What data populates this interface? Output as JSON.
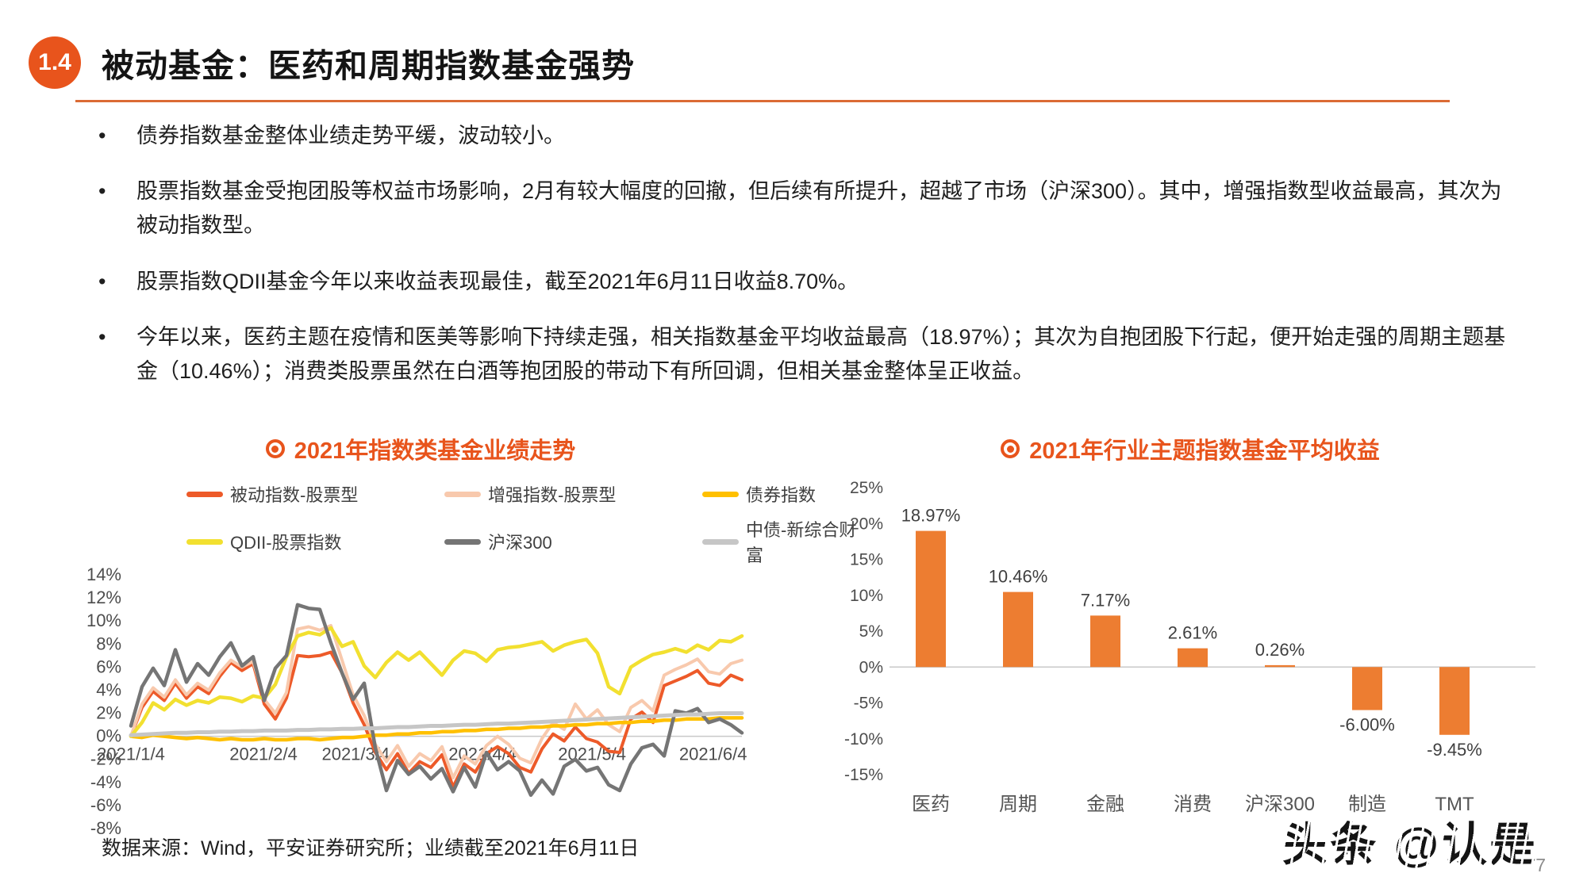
{
  "header": {
    "badge": "1.4",
    "title": "被动基金：医药和周期指数基金强势"
  },
  "bullets": [
    "债券指数基金整体业绩走势平缓，波动较小。",
    "股票指数基金受抱团股等权益市场影响，2月有较大幅度的回撤，但后续有所提升，超越了市场（沪深300）。其中，增强指数型收益最高，其次为被动指数型。",
    "股票指数QDII基金今年以来收益表现最佳，截至2021年6月11日收益8.70%。",
    "今年以来，医药主题在疫情和医美等影响下持续走强，相关指数基金平均收益最高（18.97%）；其次为自抱团股下行起，便开始走强的周期主题基金（10.46%）；消费类股票虽然在白酒等抱团股的带动下有所回调，但相关基金整体呈正收益。"
  ],
  "footer": {
    "source_note": "数据来源：Wind，平安证券研究所；业绩截至2021年6月11日",
    "page_number": "7"
  },
  "watermark": {
    "text": "头条 @认是"
  },
  "colors": {
    "accent": "#E8541C",
    "bar": "#ED7D31",
    "axis": "#C9C9C9",
    "tick_text": "#4d4d4d"
  },
  "chart_data": [
    {
      "type": "line",
      "title": "2021年指数类基金业绩走势",
      "x_tick_labels": [
        "2021/1/4",
        "2021/2/4",
        "2021/3/4",
        "2021/4/4",
        "2021/5/4",
        "2021/6/4"
      ],
      "x_tick_days": [
        0,
        23,
        39,
        61,
        80,
        101
      ],
      "x_total_days": 106,
      "ylim": [
        -8,
        14
      ],
      "y_tick_step": 2,
      "y_tick_labels": [
        "14%",
        "12%",
        "10%",
        "8%",
        "6%",
        "4%",
        "2%",
        "0%",
        "-2%",
        "-4%",
        "-6%",
        "-8%"
      ],
      "grid": false,
      "legend_position": "top",
      "series": [
        {
          "key": "passive",
          "name": "被动指数-股票型",
          "color": "#ED5A29",
          "width": 4,
          "values": [
            0.0,
            2.5,
            3.9,
            3.1,
            4.6,
            3.3,
            4.3,
            3.7,
            5.2,
            6.4,
            5.7,
            6.3,
            2.8,
            1.5,
            3.3,
            7.0,
            6.9,
            7.0,
            7.3,
            5.5,
            2.9,
            1.0,
            -1.4,
            -2.9,
            -1.5,
            -3.2,
            -2.2,
            -2.7,
            -1.6,
            -4.4,
            -2.4,
            -3.1,
            -1.5,
            -0.9,
            -1.5,
            -2.7,
            -3.1,
            -1.1,
            0.2,
            -0.4,
            0.8,
            -0.2,
            -0.5,
            -1.3,
            -1.4,
            1.5,
            2.1,
            1.2,
            4.4,
            4.8,
            5.2,
            5.7,
            4.6,
            4.4,
            5.3,
            4.9
          ]
        },
        {
          "key": "enhanced",
          "name": "增强指数-股票型",
          "color": "#F8C9AD",
          "width": 4,
          "values": [
            0.0,
            2.8,
            4.2,
            3.4,
            4.9,
            3.6,
            4.6,
            4.0,
            5.5,
            6.6,
            6.0,
            6.5,
            3.2,
            2.0,
            3.8,
            9.3,
            9.5,
            9.2,
            9.6,
            6.6,
            3.6,
            1.8,
            -0.7,
            -2.2,
            -0.8,
            -2.6,
            -1.5,
            -2.1,
            -0.9,
            -3.6,
            -1.7,
            -2.4,
            -0.8,
            0.0,
            -0.7,
            -1.9,
            -2.3,
            -0.2,
            1.2,
            0.6,
            2.8,
            1.5,
            2.3,
            1.0,
            0.4,
            2.5,
            3.1,
            2.2,
            5.3,
            5.8,
            6.2,
            6.7,
            5.6,
            5.4,
            6.3,
            6.6
          ]
        },
        {
          "key": "bond",
          "name": "债券指数",
          "color": "#FFC000",
          "width": 4.5,
          "values": [
            0.0,
            -0.1,
            0.1,
            0.0,
            -0.1,
            -0.2,
            -0.1,
            -0.2,
            -0.3,
            -0.2,
            -0.3,
            -0.3,
            -0.2,
            -0.3,
            -0.3,
            -0.2,
            -0.2,
            -0.3,
            -0.2,
            -0.1,
            -0.1,
            0.0,
            0.1,
            0.1,
            0.2,
            0.2,
            0.3,
            0.3,
            0.4,
            0.4,
            0.5,
            0.5,
            0.6,
            0.6,
            0.7,
            0.7,
            0.8,
            0.8,
            0.9,
            0.9,
            1.0,
            1.0,
            1.1,
            1.1,
            1.2,
            1.2,
            1.3,
            1.3,
            1.4,
            1.4,
            1.5,
            1.5,
            1.5,
            1.6,
            1.6,
            1.6
          ]
        },
        {
          "key": "qdii",
          "name": "QDII-股票指数",
          "color": "#F2E030",
          "width": 4.5,
          "values": [
            0.0,
            1.2,
            2.9,
            2.3,
            3.2,
            2.7,
            3.1,
            2.9,
            3.4,
            3.3,
            3.0,
            3.5,
            3.3,
            4.5,
            6.9,
            8.7,
            9.0,
            8.8,
            9.4,
            7.8,
            8.2,
            6.1,
            5.1,
            6.4,
            7.3,
            6.6,
            7.3,
            6.3,
            5.3,
            6.6,
            7.4,
            7.2,
            6.5,
            7.5,
            7.7,
            7.8,
            8.0,
            8.2,
            7.4,
            7.9,
            8.2,
            8.4,
            7.2,
            4.3,
            3.7,
            6.0,
            6.6,
            7.1,
            7.3,
            7.6,
            7.3,
            7.9,
            7.5,
            8.3,
            8.2,
            8.7
          ]
        },
        {
          "key": "hs300",
          "name": "沪深300",
          "color": "#757575",
          "width": 4.5,
          "values": [
            0.9,
            4.3,
            5.9,
            4.4,
            7.5,
            4.7,
            6.3,
            5.3,
            6.9,
            8.1,
            6.1,
            6.9,
            3.1,
            5.9,
            7.0,
            11.4,
            11.1,
            11.0,
            8.1,
            5.5,
            3.2,
            4.6,
            -1.0,
            -4.7,
            -2.1,
            -3.3,
            -2.6,
            -3.7,
            -2.8,
            -4.8,
            -2.7,
            -4.4,
            -1.4,
            -2.9,
            -2.2,
            -3.0,
            -5.1,
            -3.8,
            -5.0,
            -2.6,
            -2.0,
            -3.0,
            -2.7,
            -4.2,
            -4.7,
            -2.4,
            -1.0,
            -0.7,
            -1.7,
            2.2,
            2.0,
            2.4,
            1.2,
            1.5,
            1.0,
            0.3
          ]
        },
        {
          "key": "cbond",
          "name": "中债-新综合财富",
          "color": "#C6C6C6",
          "width": 5,
          "values": [
            0.1,
            0.15,
            0.2,
            0.25,
            0.3,
            0.3,
            0.35,
            0.35,
            0.4,
            0.4,
            0.45,
            0.45,
            0.5,
            0.5,
            0.5,
            0.55,
            0.55,
            0.6,
            0.6,
            0.65,
            0.65,
            0.7,
            0.7,
            0.75,
            0.8,
            0.8,
            0.85,
            0.9,
            0.9,
            0.95,
            1.0,
            1.0,
            1.05,
            1.1,
            1.1,
            1.15,
            1.2,
            1.25,
            1.3,
            1.35,
            1.4,
            1.45,
            1.5,
            1.55,
            1.6,
            1.65,
            1.7,
            1.75,
            1.8,
            1.85,
            1.9,
            1.9,
            1.95,
            2.0,
            2.0,
            2.0
          ]
        }
      ]
    },
    {
      "type": "bar",
      "title": "2021年行业主题指数基金平均收益",
      "categories": [
        "医药",
        "周期",
        "金融",
        "消费",
        "沪深300",
        "制造",
        "TMT"
      ],
      "values": [
        18.97,
        10.46,
        7.17,
        2.61,
        0.26,
        -6.0,
        -9.45
      ],
      "value_labels": [
        "18.97%",
        "10.46%",
        "7.17%",
        "2.61%",
        "0.26%",
        "-6.00%",
        "-9.45%"
      ],
      "ylim": [
        -15,
        25
      ],
      "y_tick_step": 5,
      "y_tick_labels": [
        "25%",
        "20%",
        "15%",
        "10%",
        "5%",
        "0%",
        "-5%",
        "-10%",
        "-15%"
      ],
      "bar_color": "#ED7D31",
      "grid": false,
      "legend_position": "none"
    }
  ]
}
